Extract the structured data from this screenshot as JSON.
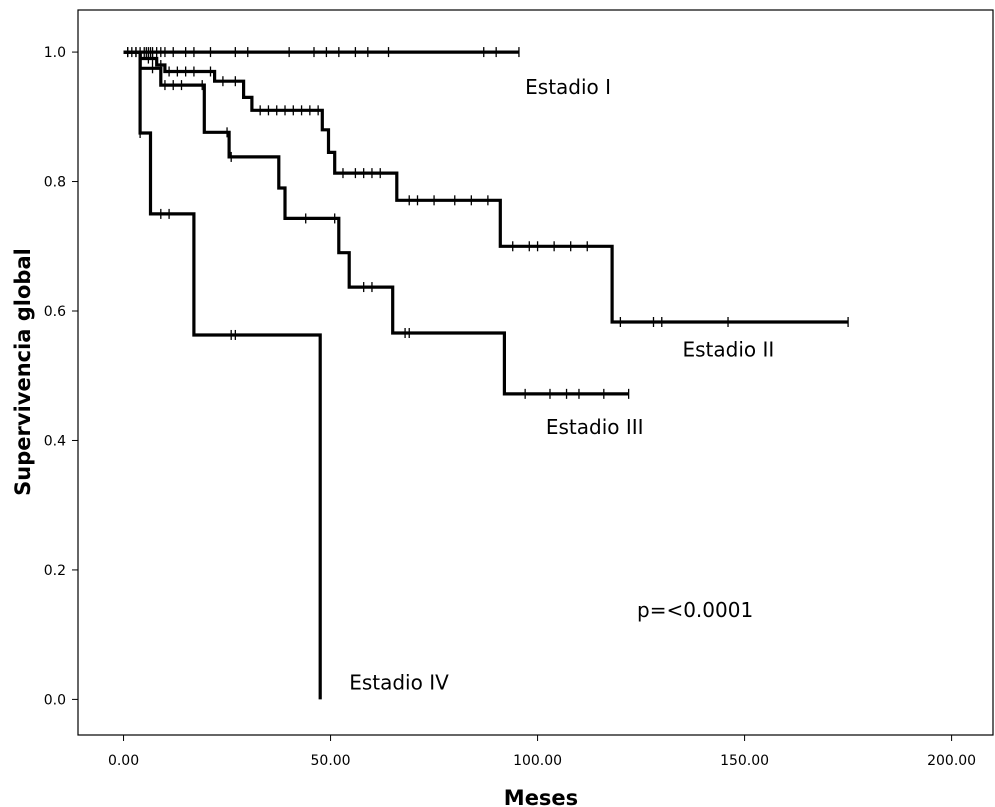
{
  "chart_data": {
    "type": "line",
    "subtype": "kaplan-meier",
    "title": "",
    "xlabel": "Meses",
    "ylabel": "Supervivencia global",
    "xlim": [
      -11,
      210
    ],
    "ylim": [
      -0.055,
      1.065
    ],
    "x_ticks": [
      0,
      50,
      100,
      150,
      200
    ],
    "x_tick_labels": [
      "0.00",
      "50.00",
      "100.00",
      "150.00",
      "200.00"
    ],
    "y_ticks": [
      0.0,
      0.2,
      0.4,
      0.6,
      0.8,
      1.0
    ],
    "y_tick_labels": [
      "0.0",
      "0.2",
      "0.4",
      "0.6",
      "0.8",
      "1.0"
    ],
    "grid": false,
    "legend": "none",
    "line_color": "#000000",
    "annotation": "p=<0.0001",
    "series": [
      {
        "name": "Estadio I",
        "label_at": [
          97,
          0.935
        ],
        "steps": [
          [
            0,
            1.0
          ],
          [
            95.5,
            1.0
          ]
        ],
        "censored": [
          1,
          3,
          4,
          5,
          5.5,
          6,
          6.5,
          7,
          8,
          9,
          10,
          12,
          15,
          17,
          21,
          27,
          30,
          40,
          46,
          49,
          52,
          56,
          59,
          64,
          87,
          90,
          95.5
        ]
      },
      {
        "name": "Estadio II",
        "label_at": [
          135,
          0.53
        ],
        "steps": [
          [
            0,
            1.0
          ],
          [
            4,
            1.0
          ],
          [
            4,
            0.99
          ],
          [
            8,
            0.99
          ],
          [
            8,
            0.98
          ],
          [
            10,
            0.98
          ],
          [
            10,
            0.97
          ],
          [
            22,
            0.97
          ],
          [
            22,
            0.955
          ],
          [
            29,
            0.955
          ],
          [
            29,
            0.93
          ],
          [
            31,
            0.93
          ],
          [
            31,
            0.91
          ],
          [
            48,
            0.91
          ],
          [
            48,
            0.88
          ],
          [
            49.5,
            0.88
          ],
          [
            49.5,
            0.845
          ],
          [
            51,
            0.845
          ],
          [
            51,
            0.813
          ],
          [
            66,
            0.813
          ],
          [
            66,
            0.771
          ],
          [
            91,
            0.771
          ],
          [
            91,
            0.7
          ],
          [
            118,
            0.7
          ],
          [
            118,
            0.583
          ],
          [
            175,
            0.583
          ]
        ],
        "censored": [
          6,
          7,
          9,
          11,
          13,
          15,
          17,
          21,
          24,
          27,
          33,
          35,
          37,
          39,
          41,
          43,
          45,
          47,
          53,
          56,
          58,
          60,
          62,
          69,
          71,
          75,
          80,
          84,
          88,
          94,
          98,
          100,
          104,
          108,
          112,
          120,
          128,
          130,
          146,
          175
        ]
      },
      {
        "name": "Estadio III",
        "label_at": [
          102,
          0.41
        ],
        "steps": [
          [
            0,
            1.0
          ],
          [
            4,
            1.0
          ],
          [
            4,
            0.975
          ],
          [
            9,
            0.975
          ],
          [
            9,
            0.949
          ],
          [
            19.5,
            0.949
          ],
          [
            19.5,
            0.876
          ],
          [
            25.5,
            0.876
          ],
          [
            25.5,
            0.838
          ],
          [
            37.5,
            0.838
          ],
          [
            37.5,
            0.79
          ],
          [
            39,
            0.79
          ],
          [
            39,
            0.743
          ],
          [
            52,
            0.743
          ],
          [
            52,
            0.69
          ],
          [
            54.5,
            0.69
          ],
          [
            54.5,
            0.637
          ],
          [
            65,
            0.637
          ],
          [
            65,
            0.566
          ],
          [
            92,
            0.566
          ],
          [
            92,
            0.472
          ],
          [
            122,
            0.472
          ]
        ],
        "censored": [
          7,
          10,
          12,
          14,
          19,
          25,
          26,
          44,
          51,
          58,
          60,
          68,
          69,
          97,
          103,
          107,
          110,
          116,
          122
        ]
      },
      {
        "name": "Estadio IV",
        "label_at": [
          54.5,
          0.015
        ],
        "steps": [
          [
            0,
            1.0
          ],
          [
            4,
            1.0
          ],
          [
            4,
            0.875
          ],
          [
            6.5,
            0.875
          ],
          [
            6.5,
            0.75
          ],
          [
            17,
            0.75
          ],
          [
            17,
            0.563
          ],
          [
            47.5,
            0.563
          ],
          [
            47.5,
            0.0
          ]
        ],
        "censored": [
          1,
          2,
          3,
          4,
          9,
          11,
          26,
          27
        ]
      }
    ]
  }
}
